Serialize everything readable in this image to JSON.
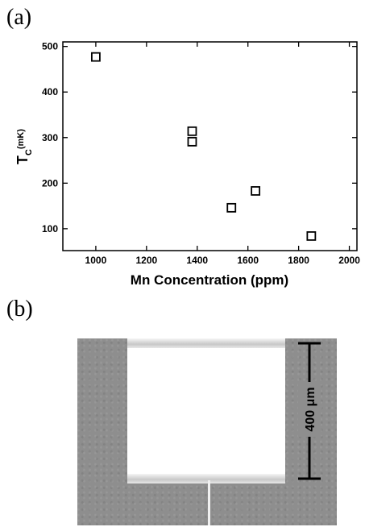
{
  "panels": {
    "a_label": "(a)",
    "b_label": "(b)"
  },
  "chart_data": {
    "type": "scatter",
    "xlabel": "Mn Concentration (ppm)",
    "ylabel_main": "T",
    "ylabel_sub": "C",
    "ylabel_unit": "(mK)",
    "xlim": [
      870,
      2030
    ],
    "ylim": [
      52,
      510
    ],
    "x_ticks": [
      1000,
      1200,
      1400,
      1600,
      1800,
      2000
    ],
    "y_ticks": [
      100,
      200,
      300,
      400,
      500
    ],
    "marker": "open-square",
    "points": [
      {
        "x": 1000,
        "y": 477
      },
      {
        "x": 1380,
        "y": 314
      },
      {
        "x": 1380,
        "y": 291
      },
      {
        "x": 1535,
        "y": 146
      },
      {
        "x": 1630,
        "y": 183
      },
      {
        "x": 1850,
        "y": 84
      }
    ]
  },
  "micrograph": {
    "scale_label": "400 μm",
    "colors": {
      "background": "#8e8e8e",
      "window": "#ffffff"
    }
  }
}
